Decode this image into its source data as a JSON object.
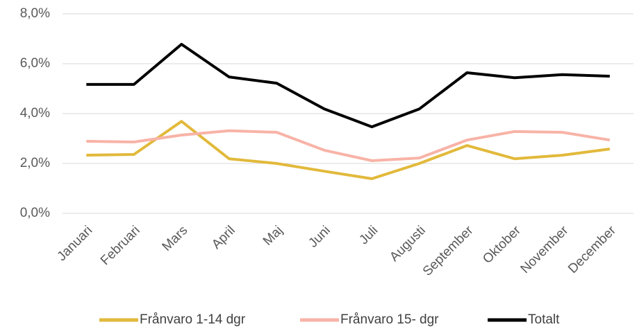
{
  "chart_data": {
    "type": "line",
    "categories": [
      "Januari",
      "Februari",
      "Mars",
      "April",
      "Maj",
      "Juni",
      "Juli",
      "Augusti",
      "September",
      "Oktober",
      "November",
      "December"
    ],
    "series": [
      {
        "name": "Frånvaro 1-14 dgr",
        "color": "#e2b93b",
        "values": [
          2.33,
          2.36,
          3.69,
          2.19,
          2.0,
          1.69,
          1.39,
          2.0,
          2.72,
          2.19,
          2.33,
          2.58
        ]
      },
      {
        "name": "Frånvaro 15- dgr",
        "color": "#f8b3a7",
        "values": [
          2.89,
          2.86,
          3.14,
          3.31,
          3.25,
          2.53,
          2.11,
          2.22,
          2.94,
          3.28,
          3.25,
          2.94
        ]
      },
      {
        "name": "Totalt",
        "color": "#000000",
        "values": [
          5.17,
          5.17,
          6.78,
          5.47,
          5.22,
          4.19,
          3.47,
          4.19,
          5.64,
          5.44,
          5.56,
          5.5
        ]
      }
    ],
    "ylim": [
      0,
      8
    ],
    "yticks": [
      {
        "value": 0,
        "label": "0,0%"
      },
      {
        "value": 2,
        "label": "2,0%"
      },
      {
        "value": 4,
        "label": "4,0%"
      },
      {
        "value": 6,
        "label": "6,0%"
      },
      {
        "value": 8,
        "label": "8,0%"
      }
    ],
    "grid": true,
    "legend": "bottom"
  }
}
